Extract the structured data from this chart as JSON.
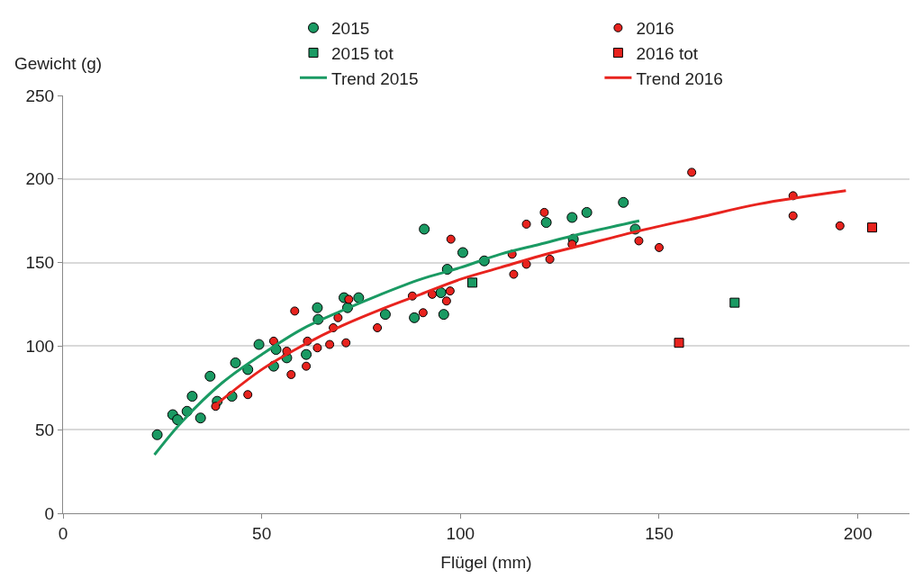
{
  "chart_data": {
    "type": "scatter",
    "xlabel": "Flügel (mm)",
    "ylabel": "Gewicht (g)",
    "xlim": [
      0,
      213
    ],
    "ylim": [
      0,
      250
    ],
    "xticks": [
      0,
      50,
      100,
      150,
      200
    ],
    "yticks": [
      0,
      50,
      100,
      150,
      200,
      250
    ],
    "grid": "y",
    "legend": "top right",
    "series": [
      {
        "name": "2015",
        "marker": "circle",
        "color": "#1a9a63",
        "x": [
          23.7,
          27.6,
          28.8,
          31.2,
          32.5,
          34.6,
          37,
          38.8,
          42.5,
          43.4,
          46.5,
          49.3,
          53,
          53.6,
          56.3,
          61.2,
          64,
          64.2,
          70.7,
          71.6,
          74.4,
          81.1,
          88.4,
          90.9,
          95.1,
          95.8,
          96.7,
          100.6,
          106,
          121.6,
          128.1,
          128.4,
          131.8,
          141,
          144
        ],
        "values": [
          47,
          59,
          56,
          61,
          70,
          57,
          82,
          67,
          70,
          90,
          86,
          101,
          88,
          98,
          93,
          95,
          123,
          116,
          129,
          123,
          129,
          119,
          117,
          170,
          132,
          119,
          146,
          156,
          151,
          174,
          177,
          164,
          180,
          186,
          170
        ]
      },
      {
        "name": "2016",
        "marker": "circle",
        "color": "#e8231e",
        "x": [
          38.4,
          46.5,
          53,
          56.3,
          57.4,
          58.3,
          61.2,
          61.5,
          64,
          67.1,
          68,
          69.2,
          71.2,
          71.9,
          79.1,
          87.9,
          90.6,
          92.9,
          96.5,
          97.4,
          97.6,
          113,
          113.4,
          116.6,
          116.6,
          121.1,
          122.5,
          128.1,
          144.9,
          150,
          158.2,
          183.7,
          183.7,
          195.5
        ],
        "values": [
          64,
          71,
          103,
          97,
          83,
          121,
          88,
          103,
          99,
          101,
          111,
          117,
          102,
          128,
          111,
          130,
          120,
          131,
          127,
          133,
          164,
          155,
          143,
          149,
          173,
          180,
          152,
          161,
          163,
          159,
          204,
          190,
          178,
          172
        ]
      },
      {
        "name": "2015 tot",
        "marker": "square",
        "color": "#1a9a63",
        "x": [
          103,
          169
        ],
        "values": [
          138,
          126
        ]
      },
      {
        "name": "2016 tot",
        "marker": "square",
        "color": "#e8231e",
        "x": [
          155,
          203.6
        ],
        "values": [
          102,
          171
        ]
      },
      {
        "name": "Trend 2015",
        "type": "line",
        "marker": "none",
        "color": "#1a9a63",
        "x": [
          23,
          30,
          40,
          50,
          60,
          70,
          80,
          90,
          100,
          110,
          120,
          130,
          145
        ],
        "values": [
          35,
          55,
          78,
          95,
          110,
          121,
          131,
          140,
          147,
          155,
          161,
          167,
          175
        ]
      },
      {
        "name": "Trend 2016",
        "type": "line",
        "marker": "none",
        "color": "#e8231e",
        "x": [
          38,
          50,
          60,
          70,
          80,
          90,
          100,
          110,
          120,
          130,
          145,
          160,
          175,
          197
        ],
        "values": [
          64,
          86,
          100,
          112,
          122,
          131,
          140,
          147,
          154,
          160,
          169,
          177,
          185,
          193
        ]
      }
    ]
  }
}
